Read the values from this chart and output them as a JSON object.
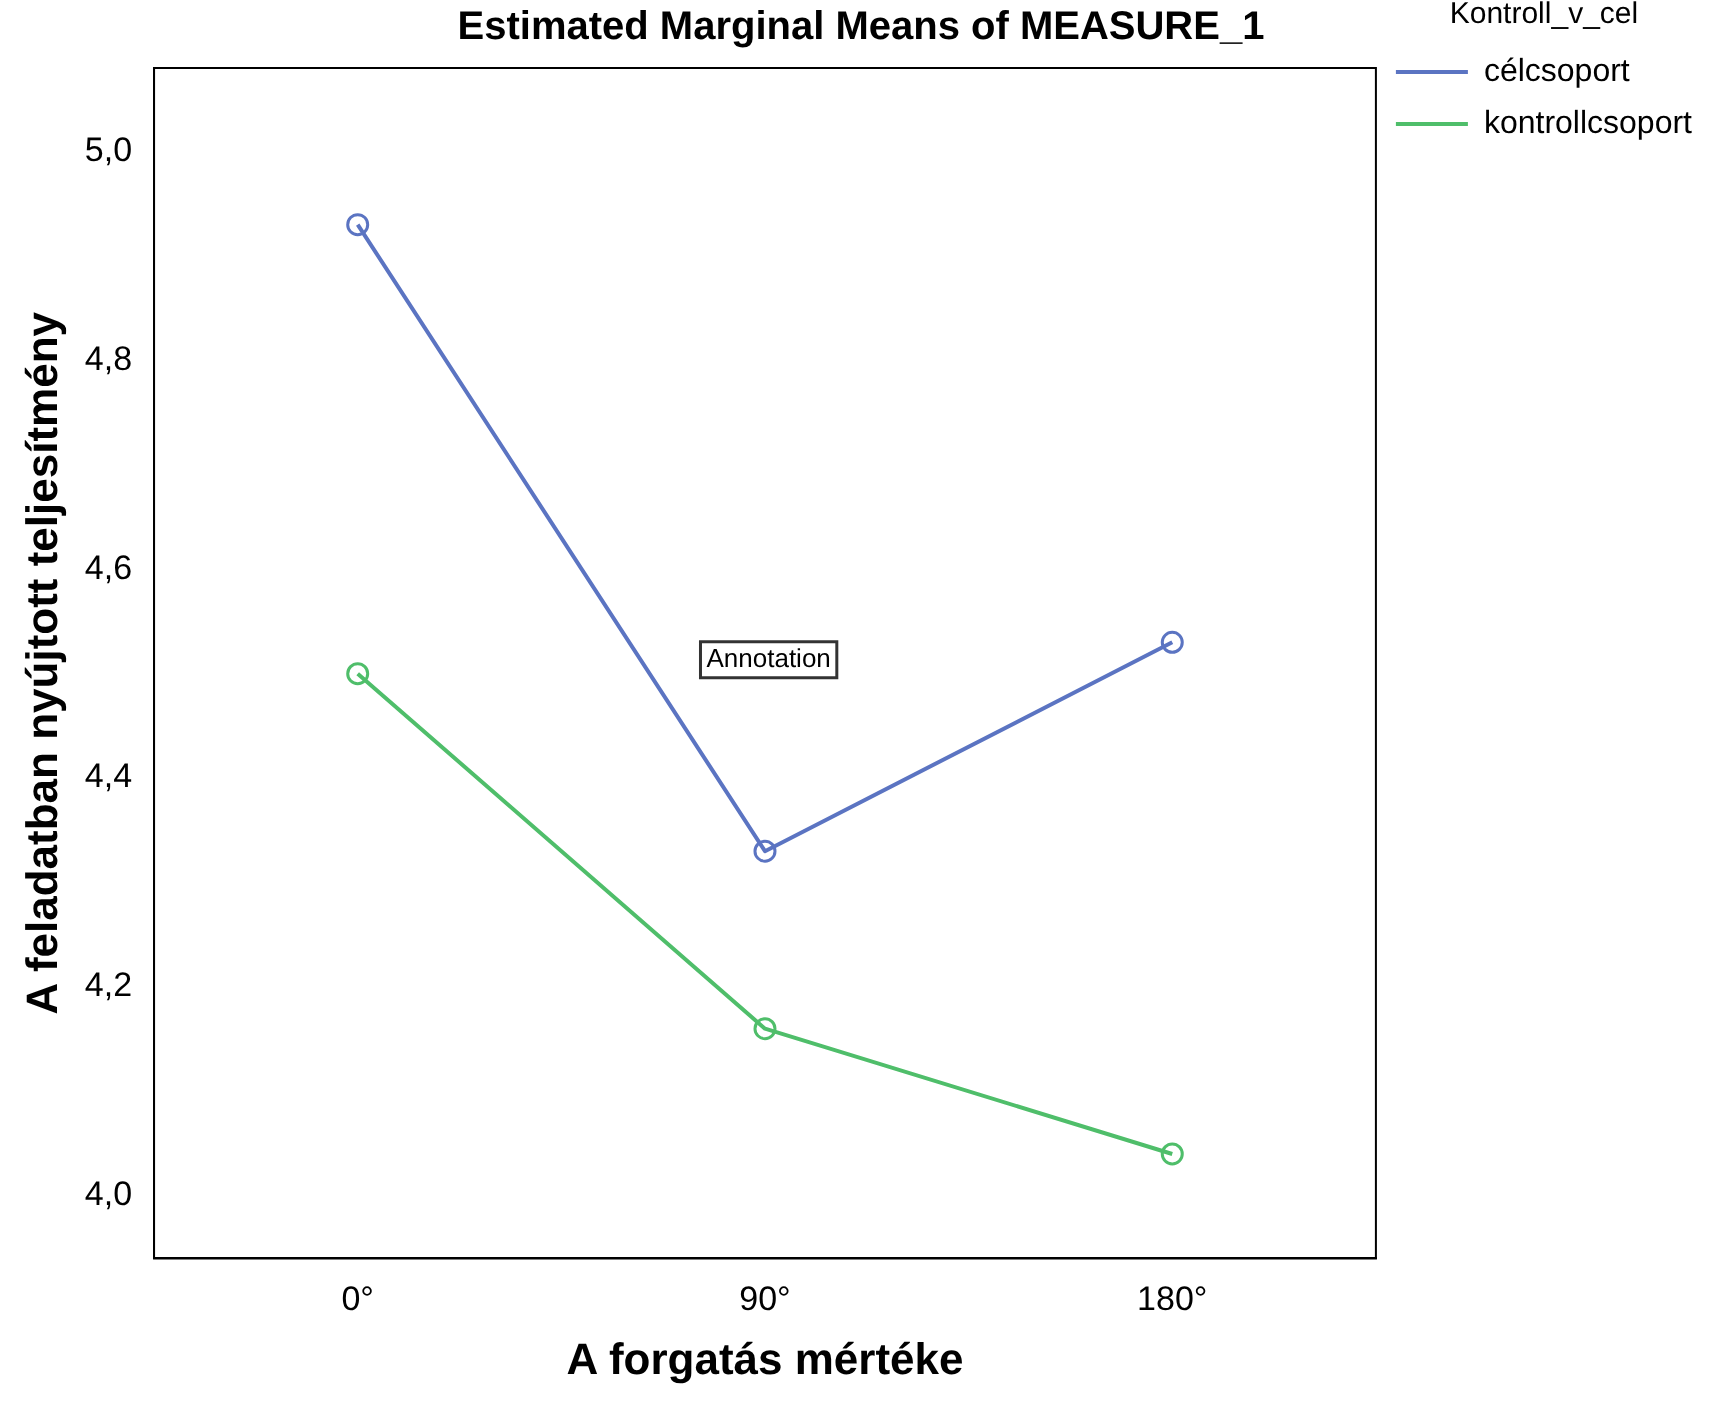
{
  "chart_data": {
    "type": "line",
    "title": "Estimated Marginal Means of MEASURE_1",
    "xlabel": "A forgatás mértéke",
    "ylabel": "A feladatban nyújtott teljesítmény",
    "legend_title": "Kontroll_v_cel",
    "categories": [
      "0°",
      "90°",
      "180°"
    ],
    "series": [
      {
        "name": "célcsoport",
        "color": "#5b74c2",
        "values": [
          4.93,
          4.33,
          4.53
        ]
      },
      {
        "name": "kontrollcsoport",
        "color": "#4fbe6a",
        "values": [
          4.5,
          4.16,
          4.04
        ]
      }
    ],
    "ylim": [
      3.94,
      5.08
    ],
    "yticks": [
      {
        "value": 4.0,
        "label": "4,0"
      },
      {
        "value": 4.2,
        "label": "4,2"
      },
      {
        "value": 4.4,
        "label": "4,4"
      },
      {
        "value": 4.6,
        "label": "4,6"
      },
      {
        "value": 4.8,
        "label": "4,8"
      },
      {
        "value": 5.0,
        "label": "5,0"
      }
    ],
    "annotations": [
      "Annotation"
    ],
    "grid": false,
    "legend": "top right",
    "marker": "circle",
    "line_style": "solid"
  }
}
